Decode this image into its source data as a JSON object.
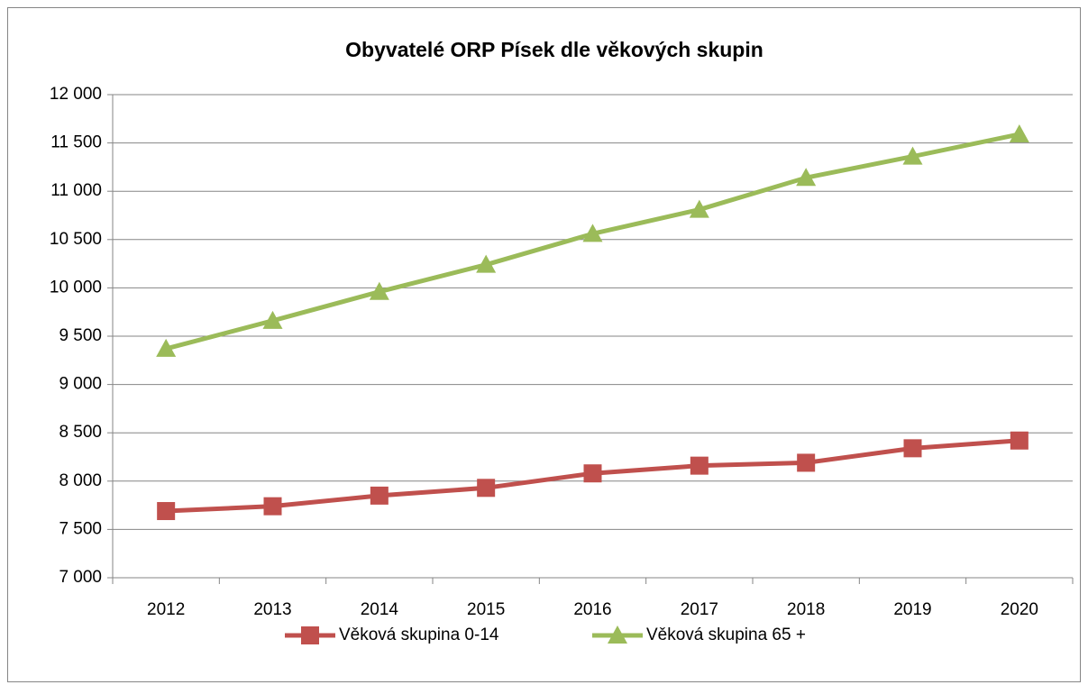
{
  "chart_data": {
    "type": "line",
    "title": "Obyvatelé ORP Písek dle věkových skupin",
    "categories": [
      "2012",
      "2013",
      "2014",
      "2015",
      "2016",
      "2017",
      "2018",
      "2019",
      "2020"
    ],
    "series": [
      {
        "name": "Věková skupina 0-14",
        "color": "#c0504d",
        "marker": "square",
        "values": [
          7690,
          7740,
          7850,
          7930,
          8080,
          8160,
          8190,
          8340,
          8420
        ]
      },
      {
        "name": "Věková skupina 65 +",
        "color": "#9bbb59",
        "marker": "triangle",
        "values": [
          9370,
          9660,
          9960,
          10240,
          10560,
          10810,
          11140,
          11360,
          11590
        ]
      }
    ],
    "ylim": [
      7000,
      12000
    ],
    "yticks": [
      {
        "value": 7000,
        "label": "7 000"
      },
      {
        "value": 7500,
        "label": "7 500"
      },
      {
        "value": 8000,
        "label": "8 000"
      },
      {
        "value": 8500,
        "label": "8 500"
      },
      {
        "value": 9000,
        "label": "9 000"
      },
      {
        "value": 9500,
        "label": "9 500"
      },
      {
        "value": 10000,
        "label": "10 000"
      },
      {
        "value": 10500,
        "label": "10 500"
      },
      {
        "value": 11000,
        "label": "11 000"
      },
      {
        "value": 11500,
        "label": "11 500"
      },
      {
        "value": 12000,
        "label": "12 000"
      }
    ],
    "grid": true,
    "legend": "bottom"
  }
}
